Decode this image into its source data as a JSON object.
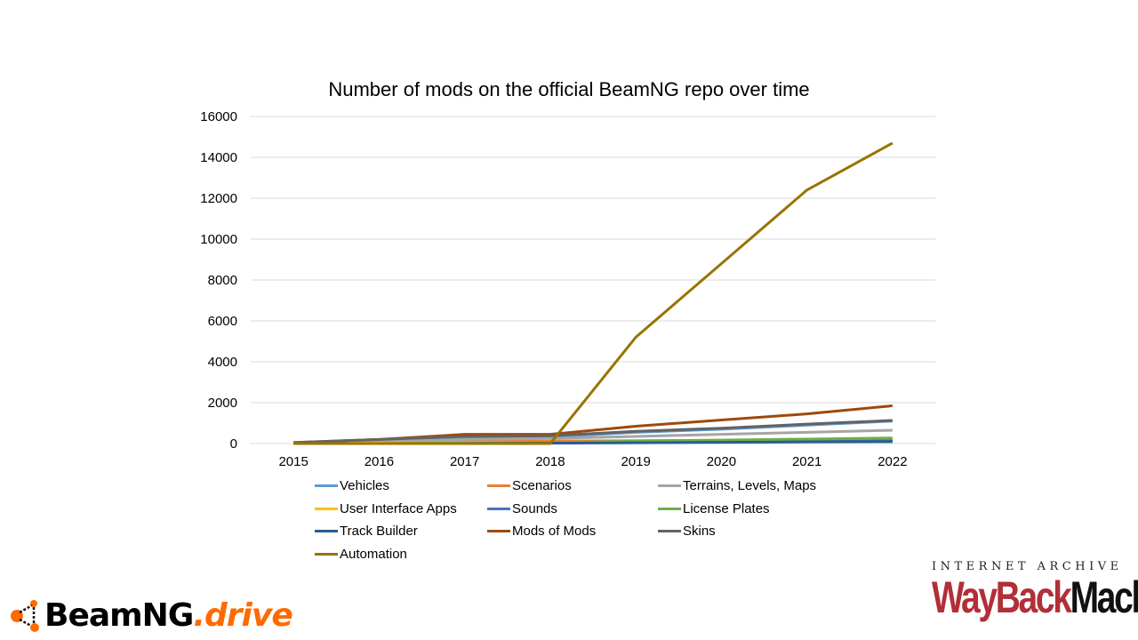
{
  "chart_data": {
    "type": "line",
    "title": "Number of mods on the official BeamNG repo over time",
    "xlabel": "",
    "ylabel": "",
    "categories": [
      "2015",
      "2016",
      "2017",
      "2018",
      "2019",
      "2020",
      "2021",
      "2022"
    ],
    "ylim": [
      0,
      16000
    ],
    "yticks": [
      0,
      2000,
      4000,
      6000,
      8000,
      10000,
      12000,
      14000,
      16000
    ],
    "grid": true,
    "legend_placement": "bottom",
    "series": [
      {
        "name": "Vehicles",
        "color": "#5B9BD5",
        "values": [
          30,
          150,
          300,
          330,
          550,
          700,
          900,
          1100
        ]
      },
      {
        "name": "Scenarios",
        "color": "#ED7D31",
        "values": [
          10,
          50,
          100,
          120,
          140,
          160,
          180,
          200
        ]
      },
      {
        "name": "Terrains, Levels, Maps",
        "color": "#A5A5A5",
        "values": [
          20,
          100,
          200,
          250,
          350,
          450,
          550,
          650
        ]
      },
      {
        "name": "User Interface Apps",
        "color": "#FFC000",
        "values": [
          5,
          20,
          40,
          50,
          60,
          70,
          80,
          90
        ]
      },
      {
        "name": "Sounds",
        "color": "#4472C4",
        "values": [
          0,
          0,
          10,
          30,
          60,
          80,
          100,
          130
        ]
      },
      {
        "name": "License Plates",
        "color": "#70AD47",
        "values": [
          0,
          0,
          20,
          50,
          120,
          170,
          220,
          270
        ]
      },
      {
        "name": "Track Builder",
        "color": "#255E91",
        "values": [
          0,
          0,
          0,
          20,
          40,
          60,
          80,
          100
        ]
      },
      {
        "name": "Mods of Mods",
        "color": "#9E480E",
        "values": [
          50,
          200,
          450,
          450,
          850,
          1150,
          1450,
          1850
        ]
      },
      {
        "name": "Skins",
        "color": "#636363",
        "values": [
          50,
          200,
          350,
          380,
          600,
          750,
          950,
          1130
        ]
      },
      {
        "name": "Automation",
        "color": "#997300",
        "values": [
          0,
          0,
          0,
          0,
          5200,
          8800,
          12400,
          14700
        ]
      }
    ]
  },
  "logos": {
    "beamng": {
      "brand": "BeamNG",
      "suffix": ".drive",
      "color": "#FF6A00"
    },
    "wayback": {
      "top": "INTERNET ARCHIVE",
      "wayback": "WayBack",
      "machine": "Machine"
    }
  }
}
